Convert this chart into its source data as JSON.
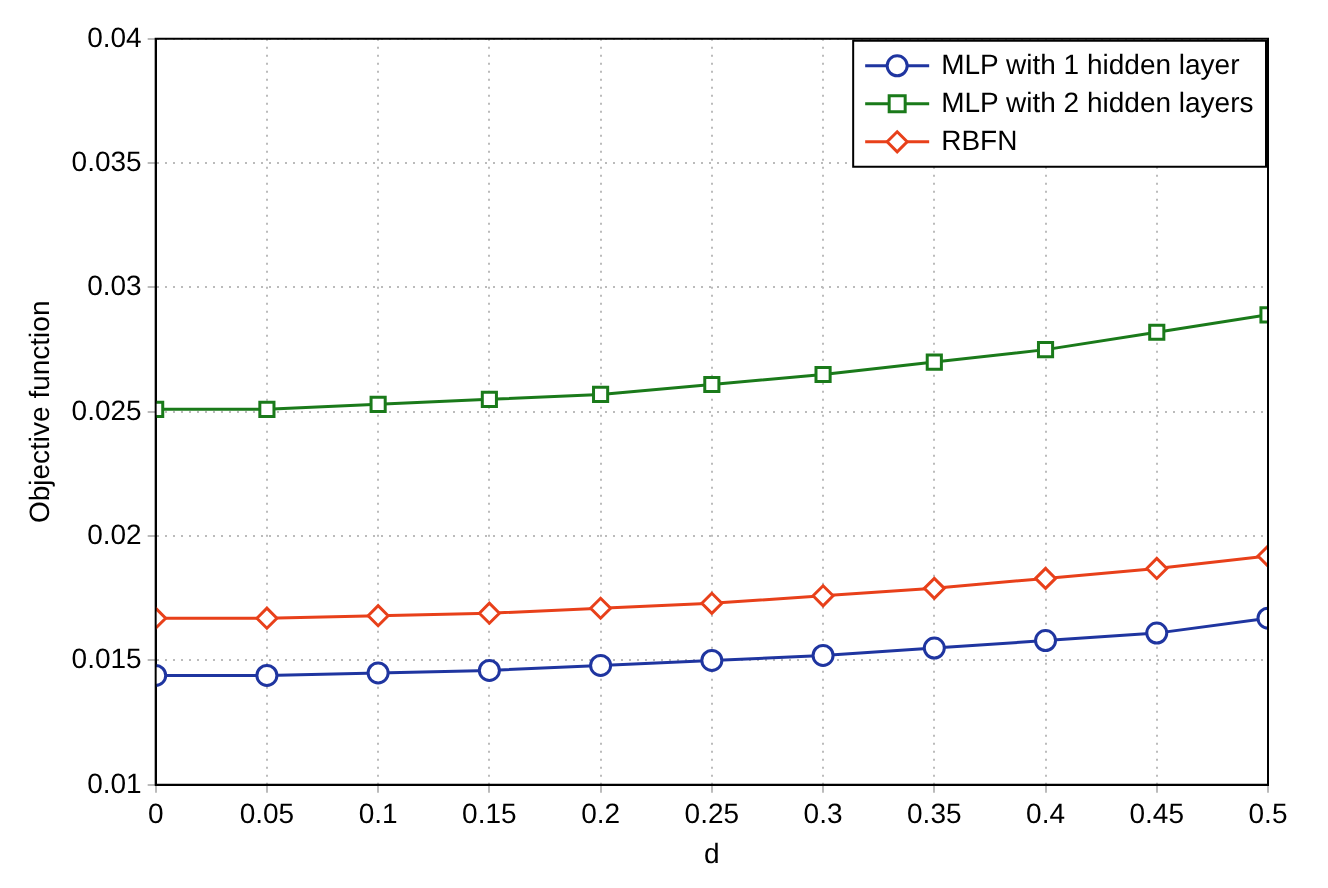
{
  "chart_data": {
    "type": "line",
    "xlabel": "d",
    "ylabel": "Objective function",
    "x": [
      0,
      0.05,
      0.1,
      0.15,
      0.2,
      0.25,
      0.3,
      0.35,
      0.4,
      0.45,
      0.5
    ],
    "series": [
      {
        "name": "MLP with 1 hidden layer",
        "color": "#1f35a0",
        "marker": "circle",
        "values": [
          0.0144,
          0.0144,
          0.0145,
          0.0146,
          0.0148,
          0.015,
          0.0152,
          0.0155,
          0.0158,
          0.0161,
          0.0167
        ]
      },
      {
        "name": "MLP with 2 hidden layers",
        "color": "#1a7a1a",
        "marker": "square",
        "values": [
          0.0251,
          0.0251,
          0.0253,
          0.0255,
          0.0257,
          0.0261,
          0.0265,
          0.027,
          0.0275,
          0.0282,
          0.0289
        ]
      },
      {
        "name": "RBFN",
        "color": "#e8401a",
        "marker": "diamond",
        "values": [
          0.0167,
          0.0167,
          0.0168,
          0.0169,
          0.0171,
          0.0173,
          0.0176,
          0.0179,
          0.0183,
          0.0187,
          0.0192
        ]
      }
    ],
    "xlim": [
      0,
      0.5
    ],
    "xticks": [
      0,
      0.05,
      0.1,
      0.15,
      0.2,
      0.25,
      0.3,
      0.35,
      0.4,
      0.45,
      0.5
    ],
    "ylim": [
      0.01,
      0.04
    ],
    "yticks": [
      0.01,
      0.015,
      0.02,
      0.025,
      0.03,
      0.035,
      0.04
    ],
    "grid": true,
    "legend": "top right",
    "line_style": "solid"
  }
}
